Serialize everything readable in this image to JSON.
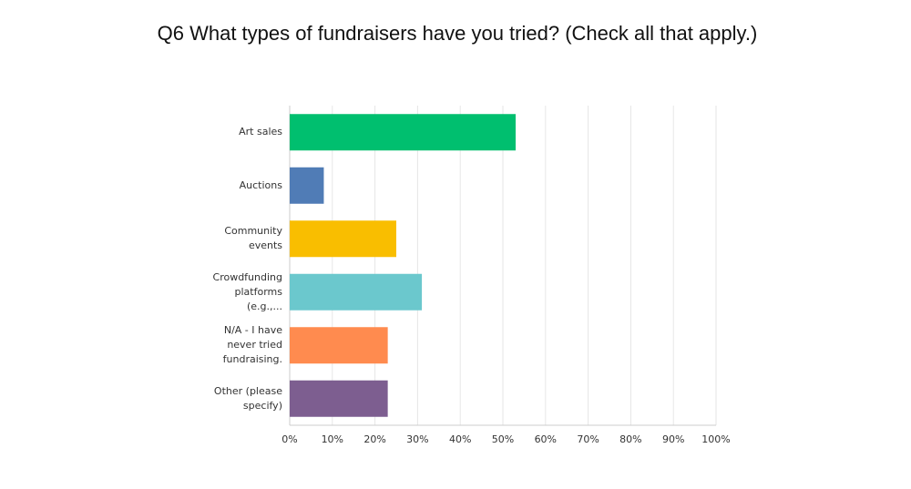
{
  "chart_data": {
    "type": "barh",
    "title": "Q6 What types of fundraisers have you tried? (Check all that apply.)",
    "categories": [
      "Art sales",
      "Auctions",
      "Community events",
      "Crowdfunding platforms (e.g.,...",
      "N/A - I have never tried fundraising.",
      "Other (please specify)"
    ],
    "values": [
      53,
      8,
      25,
      31,
      23,
      23
    ],
    "colors": [
      "#00bf6f",
      "#507cb6",
      "#f9be00",
      "#6bc8cd",
      "#ff8b4f",
      "#7d5e90"
    ],
    "xlim": [
      0,
      100
    ],
    "xticks": [
      {
        "value": 0,
        "label": "0%"
      },
      {
        "value": 10,
        "label": "10%"
      },
      {
        "value": 20,
        "label": "20%"
      },
      {
        "value": 30,
        "label": "30%"
      },
      {
        "value": 40,
        "label": "40%"
      },
      {
        "value": 50,
        "label": "50%"
      },
      {
        "value": 60,
        "label": "60%"
      },
      {
        "value": 70,
        "label": "70%"
      },
      {
        "value": 80,
        "label": "80%"
      },
      {
        "value": 90,
        "label": "90%"
      },
      {
        "value": 100,
        "label": "100%"
      }
    ],
    "grid": true
  }
}
